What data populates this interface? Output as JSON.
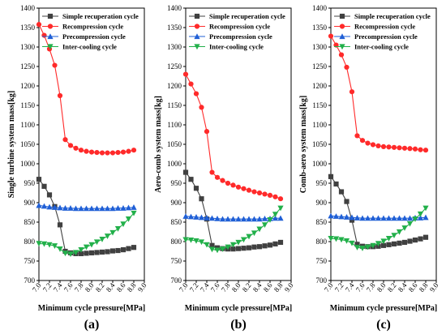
{
  "chart_data": [
    {
      "type": "line",
      "panel_label": "(a)",
      "xlabel": "Minimum cycle pressure[MPa]",
      "ylabel": "Single turbine system mass[kg]",
      "xlim": [
        7.0,
        9.0
      ],
      "ylim": [
        700,
        1400
      ],
      "xticks": [
        "7.0",
        "7.2",
        "7.4",
        "7.6",
        "7.8",
        "8.0",
        "8.2",
        "8.4",
        "8.6",
        "8.8",
        "9.0"
      ],
      "yticks": [
        700,
        750,
        800,
        850,
        900,
        950,
        1000,
        1050,
        1100,
        1150,
        1200,
        1250,
        1300,
        1350,
        1400
      ],
      "legend_position": "top-right",
      "grid": false,
      "x": [
        7.0,
        7.1,
        7.2,
        7.3,
        7.4,
        7.5,
        7.6,
        7.7,
        7.8,
        7.9,
        8.0,
        8.1,
        8.2,
        8.3,
        8.4,
        8.5,
        8.6,
        8.7,
        8.8
      ],
      "series": [
        {
          "name": "Simple recuperation cycle",
          "marker": "square",
          "color": "#404040",
          "values": [
            960,
            942,
            920,
            890,
            843,
            775,
            771,
            769,
            769,
            770,
            771,
            772,
            773,
            774,
            776,
            777,
            779,
            782,
            785
          ]
        },
        {
          "name": "Recompression cycle",
          "marker": "circle",
          "color": "#ff2a2a",
          "values": [
            1358,
            1330,
            1295,
            1253,
            1175,
            1062,
            1047,
            1040,
            1035,
            1032,
            1030,
            1029,
            1028,
            1028,
            1028,
            1029,
            1030,
            1032,
            1035
          ]
        },
        {
          "name": "Precompression cycle",
          "marker": "triangle-up",
          "color": "#1f5fd6",
          "values": [
            893,
            891,
            889,
            888,
            887,
            886,
            886,
            885,
            885,
            885,
            885,
            885,
            885,
            885,
            885,
            886,
            886,
            887,
            888
          ]
        },
        {
          "name": "Inter-cooling cycle",
          "marker": "triangle-down",
          "color": "#22b04a",
          "values": [
            795,
            794,
            792,
            789,
            781,
            770,
            768,
            772,
            779,
            786,
            792,
            799,
            806,
            814,
            823,
            833,
            845,
            858,
            873
          ]
        }
      ]
    },
    {
      "type": "line",
      "panel_label": "(b)",
      "xlabel": "Minimum cycle pressure[MPa]",
      "ylabel": "Aero-comb system mass[kg]",
      "xlim": [
        7.0,
        9.0
      ],
      "ylim": [
        700,
        1400
      ],
      "xticks": [
        "7.0",
        "7.2",
        "7.4",
        "7.6",
        "7.8",
        "8.0",
        "8.2",
        "8.4",
        "8.6",
        "8.8",
        "9.0"
      ],
      "yticks": [
        700,
        750,
        800,
        850,
        900,
        950,
        1000,
        1050,
        1100,
        1150,
        1200,
        1250,
        1300,
        1350,
        1400
      ],
      "legend_position": "top-right",
      "grid": false,
      "x": [
        7.0,
        7.1,
        7.2,
        7.3,
        7.4,
        7.5,
        7.6,
        7.7,
        7.8,
        7.9,
        8.0,
        8.1,
        8.2,
        8.3,
        8.4,
        8.5,
        8.6,
        8.7,
        8.8
      ],
      "series": [
        {
          "name": "Simple recuperation cycle",
          "marker": "square",
          "color": "#404040",
          "values": [
            978,
            960,
            937,
            910,
            858,
            790,
            784,
            782,
            781,
            781,
            782,
            783,
            784,
            786,
            787,
            789,
            791,
            794,
            798
          ]
        },
        {
          "name": "Recompression cycle",
          "marker": "circle",
          "color": "#ff2a2a",
          "values": [
            1230,
            1205,
            1180,
            1145,
            1083,
            978,
            965,
            957,
            950,
            945,
            940,
            936,
            932,
            928,
            925,
            922,
            919,
            915,
            910
          ]
        },
        {
          "name": "Precompression cycle",
          "marker": "triangle-up",
          "color": "#1f5fd6",
          "values": [
            865,
            864,
            863,
            862,
            861,
            860,
            859,
            858,
            858,
            858,
            858,
            858,
            858,
            858,
            858,
            859,
            859,
            860,
            860
          ]
        },
        {
          "name": "Inter-cooling cycle",
          "marker": "triangle-down",
          "color": "#22b04a",
          "values": [
            805,
            804,
            802,
            799,
            792,
            780,
            778,
            781,
            786,
            792,
            798,
            805,
            813,
            822,
            832,
            843,
            856,
            870,
            886
          ]
        }
      ]
    },
    {
      "type": "line",
      "panel_label": "(c)",
      "xlabel": "Minimum cycle pressure[MPa]",
      "ylabel": "Comb-aero system mass[kg]",
      "xlim": [
        7.0,
        9.0
      ],
      "ylim": [
        700,
        1400
      ],
      "xticks": [
        "7.0",
        "7.2",
        "7.4",
        "7.6",
        "7.8",
        "8.0",
        "8.2",
        "8.4",
        "8.6",
        "8.8",
        "9.0"
      ],
      "yticks": [
        700,
        750,
        800,
        850,
        900,
        950,
        1000,
        1050,
        1100,
        1150,
        1200,
        1250,
        1300,
        1350,
        1400
      ],
      "legend_position": "top-right",
      "grid": false,
      "x": [
        7.0,
        7.1,
        7.2,
        7.3,
        7.4,
        7.5,
        7.6,
        7.7,
        7.8,
        7.9,
        8.0,
        8.1,
        8.2,
        8.3,
        8.4,
        8.5,
        8.6,
        8.7,
        8.8
      ],
      "series": [
        {
          "name": "Simple recuperation cycle",
          "marker": "square",
          "color": "#404040",
          "values": [
            967,
            948,
            928,
            903,
            855,
            793,
            788,
            787,
            787,
            788,
            790,
            792,
            794,
            796,
            798,
            801,
            804,
            807,
            811
          ]
        },
        {
          "name": "Recompression cycle",
          "marker": "circle",
          "color": "#ff2a2a",
          "values": [
            1328,
            1305,
            1280,
            1248,
            1185,
            1072,
            1060,
            1053,
            1049,
            1046,
            1044,
            1043,
            1042,
            1041,
            1040,
            1039,
            1038,
            1036,
            1035
          ]
        },
        {
          "name": "Precompression cycle",
          "marker": "triangle-up",
          "color": "#1f5fd6",
          "values": [
            866,
            865,
            864,
            863,
            862,
            861,
            860,
            860,
            860,
            860,
            860,
            860,
            860,
            860,
            860,
            860,
            861,
            861,
            862
          ]
        },
        {
          "name": "Inter-cooling cycle",
          "marker": "triangle-down",
          "color": "#22b04a",
          "values": [
            808,
            807,
            805,
            802,
            796,
            785,
            783,
            786,
            790,
            795,
            801,
            808,
            816,
            825,
            835,
            846,
            858,
            871,
            886
          ]
        }
      ]
    }
  ]
}
